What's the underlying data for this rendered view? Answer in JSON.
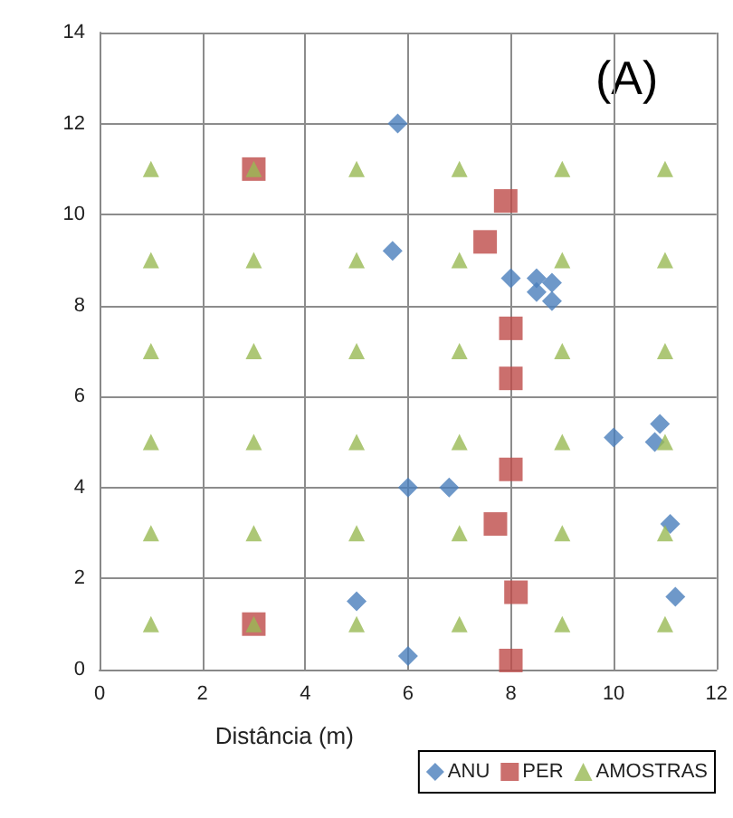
{
  "chart_data": {
    "type": "scatter",
    "xlabel": "Distância (m)",
    "annotations": [
      "(A)"
    ],
    "xlim": [
      0,
      12
    ],
    "xticks": [
      0,
      2,
      4,
      6,
      8,
      10,
      12
    ],
    "ylim": [
      0,
      14
    ],
    "yticks": [
      0,
      2,
      4,
      6,
      8,
      10,
      12,
      14
    ],
    "grid": true,
    "legend": "bottom right",
    "series": [
      {
        "name": "ANU",
        "color": "#4a7ebb",
        "marker": "diamond",
        "x": [
          5.8,
          5.7,
          8,
          8.5,
          8.5,
          8.8,
          8.8,
          10,
          10.8,
          10.9,
          11.1,
          11.2,
          6,
          6.8,
          5,
          6
        ],
        "values": [
          12,
          9.2,
          8.6,
          8.6,
          8.3,
          8.5,
          8.1,
          5.1,
          5,
          5.4,
          3.2,
          1.6,
          4,
          4,
          1.5,
          0.3
        ]
      },
      {
        "name": "PER",
        "color": "#be4b48",
        "marker": "square",
        "x": [
          3,
          7.9,
          7.5,
          8,
          8,
          8,
          7.7,
          8.1,
          8,
          3
        ],
        "values": [
          11,
          10.3,
          9.4,
          7.5,
          6.4,
          4.4,
          3.2,
          1.7,
          0.2,
          1
        ]
      },
      {
        "name": "AMOSTRAS",
        "color": "#98b954",
        "marker": "triangle",
        "x": [
          1,
          3,
          5,
          7,
          9,
          11,
          1,
          3,
          5,
          7,
          9,
          11,
          1,
          3,
          5,
          7,
          9,
          11,
          1,
          3,
          5,
          7,
          9,
          11,
          1,
          3,
          5,
          7,
          9,
          11,
          1,
          3,
          5,
          7,
          9,
          11
        ],
        "values": [
          11,
          11,
          11,
          11,
          11,
          11,
          9,
          9,
          9,
          9,
          9,
          9,
          7,
          7,
          7,
          7,
          7,
          7,
          5,
          5,
          5,
          5,
          5,
          5,
          3,
          3,
          3,
          3,
          3,
          3,
          1,
          1,
          1,
          1,
          1,
          1
        ]
      }
    ]
  }
}
